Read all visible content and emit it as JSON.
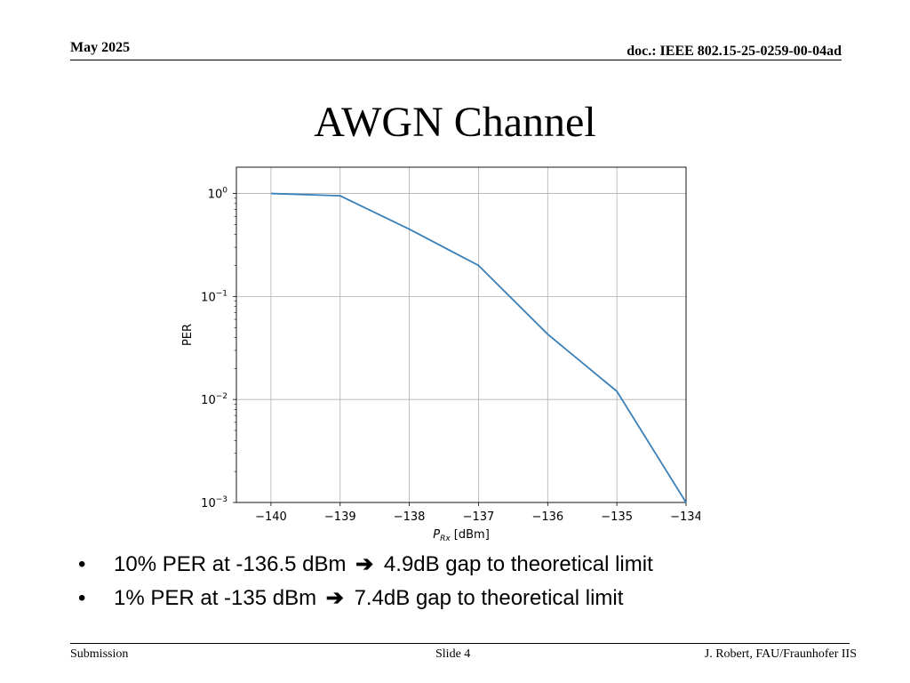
{
  "header": {
    "date": "May 2025",
    "doc": "doc.: IEEE 802.15-25-0259-00-04ad"
  },
  "title": "AWGN Channel",
  "chart_data": {
    "type": "line",
    "xlabel_main": "P",
    "xlabel_sub": "Rx",
    "xlabel_unit": "[dBm]",
    "ylabel": "PER",
    "x": [
      -140,
      -139,
      -138,
      -137,
      -136,
      -135,
      -134
    ],
    "series": [
      {
        "values": [
          1.0,
          0.95,
          0.45,
          0.2,
          0.043,
          0.012,
          0.001
        ]
      }
    ],
    "x_ticks": [
      "−140",
      "−139",
      "−138",
      "−137",
      "−136",
      "−135",
      "−134"
    ],
    "y_ticks": [
      {
        "base": "10",
        "exp": "0"
      },
      {
        "base": "10",
        "exp": "−1"
      },
      {
        "base": "10",
        "exp": "−2"
      },
      {
        "base": "10",
        "exp": "−3"
      }
    ],
    "xlim": [
      -140.5,
      -134
    ],
    "ylim": [
      0.001,
      1.8
    ],
    "y_scale": "log",
    "grid": true,
    "line_color": "#3a80b8"
  },
  "bullets": [
    {
      "marker": "•",
      "before": "10% PER at -136.5 dBm",
      "arrow": "➔",
      "after": "4.9dB gap to theoretical limit"
    },
    {
      "marker": "•",
      "before": "1% PER at -135 dBm",
      "arrow": "➔",
      "after": "7.4dB gap to theoretical limit"
    }
  ],
  "footer": {
    "left": "Submission",
    "middle": "Slide 4",
    "right": "J. Robert, FAU/Fraunhofer IIS"
  }
}
